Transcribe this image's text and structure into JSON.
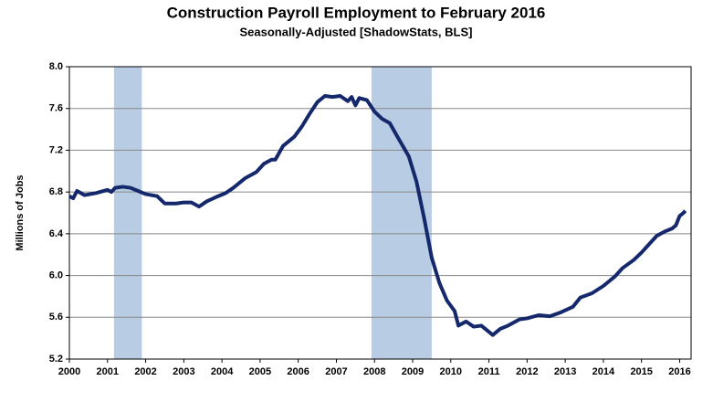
{
  "chart_data": {
    "type": "line",
    "title": "Construction Payroll Employment to February 2016",
    "subtitle": "Seasonally-Adjusted [ShadowStats, BLS]",
    "y_label": "Millions of Jobs",
    "x": [
      2000.0,
      2000.1,
      2000.2,
      2000.4,
      2000.7,
      2001.0,
      2001.1,
      2001.2,
      2001.4,
      2001.6,
      2001.8,
      2002.0,
      2002.3,
      2002.5,
      2002.8,
      2003.0,
      2003.2,
      2003.4,
      2003.6,
      2003.9,
      2004.1,
      2004.3,
      2004.6,
      2004.9,
      2005.1,
      2005.3,
      2005.4,
      2005.6,
      2005.9,
      2006.1,
      2006.3,
      2006.5,
      2006.7,
      2006.9,
      2007.1,
      2007.3,
      2007.4,
      2007.5,
      2007.6,
      2007.8,
      2008.0,
      2008.2,
      2008.4,
      2008.6,
      2008.9,
      2009.1,
      2009.3,
      2009.5,
      2009.7,
      2009.9,
      2010.1,
      2010.2,
      2010.4,
      2010.6,
      2010.8,
      2010.9,
      2011.1,
      2011.3,
      2011.5,
      2011.8,
      2012.0,
      2012.3,
      2012.6,
      2012.9,
      2013.2,
      2013.4,
      2013.7,
      2014.0,
      2014.3,
      2014.5,
      2014.8,
      2015.0,
      2015.2,
      2015.4,
      2015.6,
      2015.8,
      2015.9,
      2016.0,
      2016.1,
      2016.15
    ],
    "series": [
      {
        "color": "#14286b",
        "values": [
          6.76,
          6.74,
          6.81,
          6.77,
          6.79,
          6.82,
          6.8,
          6.84,
          6.85,
          6.84,
          6.81,
          6.78,
          6.76,
          6.69,
          6.69,
          6.7,
          6.7,
          6.66,
          6.71,
          6.76,
          6.79,
          6.84,
          6.93,
          6.99,
          7.07,
          7.11,
          7.11,
          7.24,
          7.33,
          7.43,
          7.55,
          7.66,
          7.72,
          7.71,
          7.72,
          7.67,
          7.71,
          7.63,
          7.7,
          7.68,
          7.57,
          7.5,
          7.46,
          7.33,
          7.14,
          6.9,
          6.55,
          6.17,
          5.93,
          5.76,
          5.66,
          5.52,
          5.56,
          5.51,
          5.52,
          5.49,
          5.43,
          5.49,
          5.52,
          5.58,
          5.59,
          5.62,
          5.61,
          5.65,
          5.7,
          5.79,
          5.83,
          5.9,
          5.99,
          6.07,
          6.15,
          6.22,
          6.3,
          6.38,
          6.42,
          6.45,
          6.48,
          6.57,
          6.6,
          6.62
        ]
      }
    ],
    "recessions": [
      [
        2001.17,
        2001.9
      ],
      [
        2007.92,
        2009.5
      ]
    ],
    "recession_color": "#b8cce4",
    "xlim": [
      2000,
      2016.3
    ],
    "xticks": [
      2000,
      2001,
      2002,
      2003,
      2004,
      2005,
      2006,
      2007,
      2008,
      2009,
      2010,
      2011,
      2012,
      2013,
      2014,
      2015,
      2016
    ],
    "ylim": [
      5.2,
      8.0
    ],
    "yticks": [
      5.2,
      5.6,
      {
        "value": 6.0,
        "label": "6.0"
      },
      6.4,
      6.8,
      7.2,
      7.6,
      {
        "value": 8.0,
        "label": "8.0"
      }
    ],
    "grid": true
  }
}
